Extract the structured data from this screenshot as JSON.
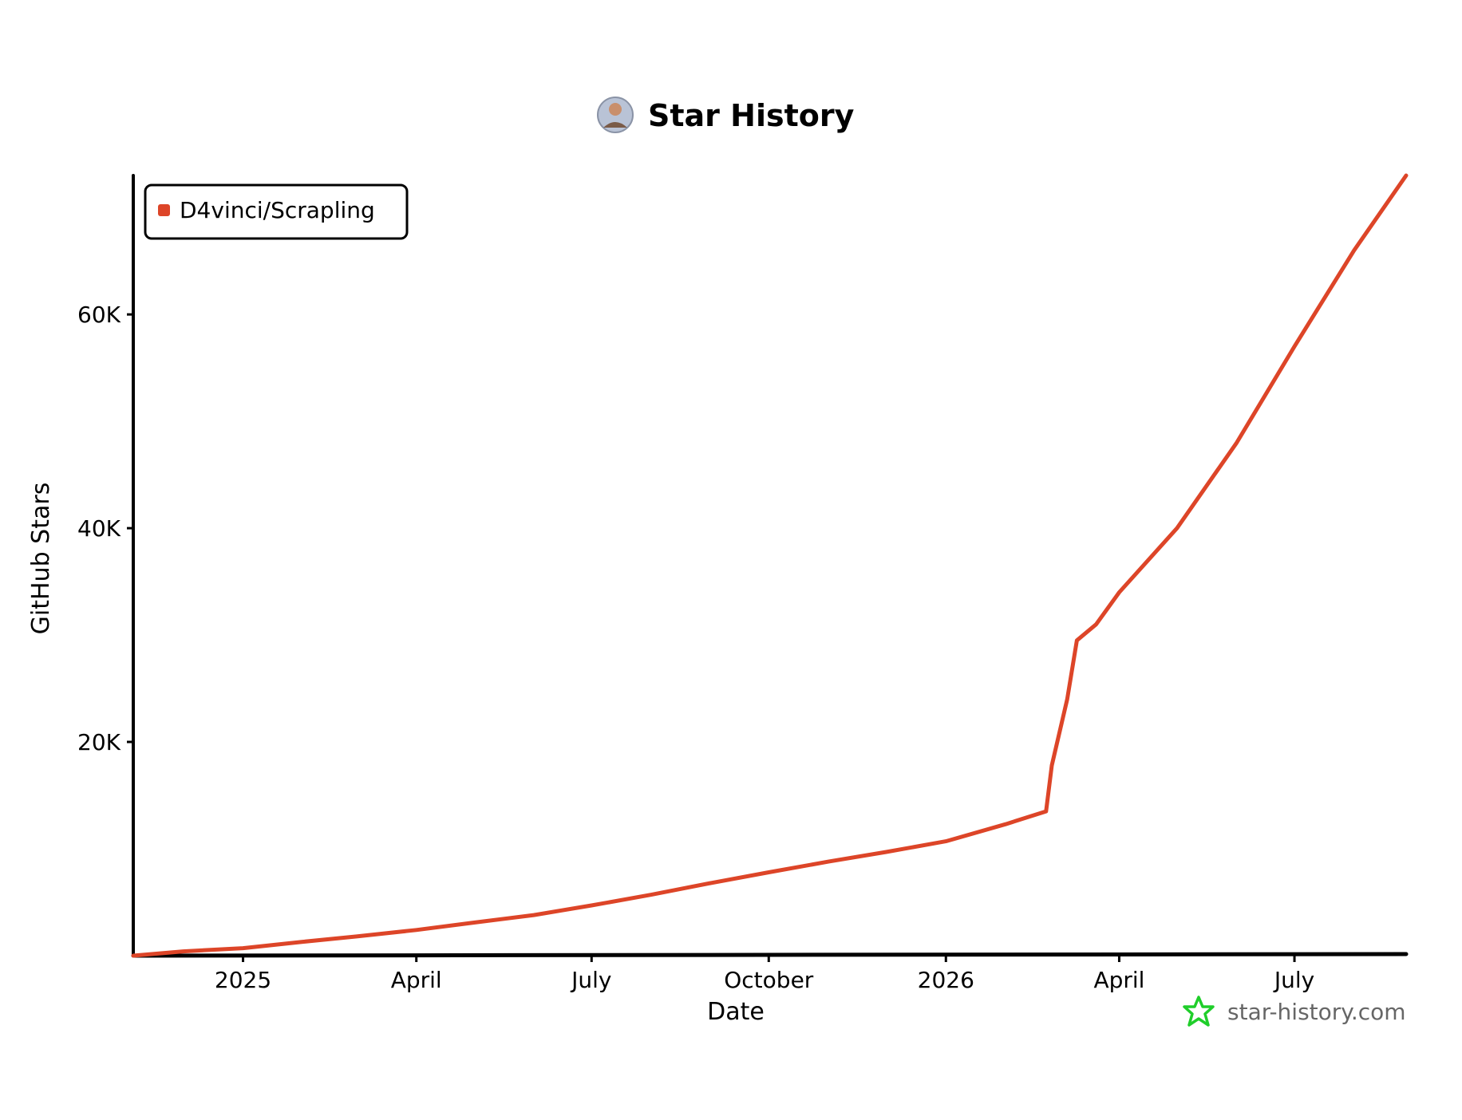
{
  "title": "Star History",
  "footer": {
    "text": "star-history.com"
  },
  "colors": {
    "series": "#dd4528",
    "axis": "#000000",
    "footer_logo": "#1fce2a",
    "footer_text": "#666666"
  },
  "icons": {
    "title_avatar": "avatar-icon",
    "footer_logo": "star-logo-icon"
  },
  "chart_data": {
    "type": "line",
    "title": "Star History",
    "xlabel": "Date",
    "ylabel": "GitHub Stars",
    "xlim": [
      "2024-11-05",
      "2026-08-28"
    ],
    "ylim": [
      0,
      73000
    ],
    "x_ticks": [
      {
        "date": "2025-01-01",
        "label": "2025"
      },
      {
        "date": "2025-04-01",
        "label": "April"
      },
      {
        "date": "2025-07-01",
        "label": "July"
      },
      {
        "date": "2025-10-01",
        "label": "October"
      },
      {
        "date": "2026-01-01",
        "label": "2026"
      },
      {
        "date": "2026-04-01",
        "label": "April"
      },
      {
        "date": "2026-07-01",
        "label": "July"
      }
    ],
    "y_ticks": [
      {
        "value": 20000,
        "label": "20K"
      },
      {
        "value": 40000,
        "label": "40K"
      },
      {
        "value": 60000,
        "label": "60K"
      }
    ],
    "grid": false,
    "legend": "top-left",
    "series": [
      {
        "name": "D4vinci/Scrapling",
        "color": "#dd4528",
        "points": [
          {
            "x": "2024-11-05",
            "y": 0
          },
          {
            "x": "2024-12-01",
            "y": 400
          },
          {
            "x": "2025-01-01",
            "y": 700
          },
          {
            "x": "2025-02-01",
            "y": 1300
          },
          {
            "x": "2025-03-01",
            "y": 1800
          },
          {
            "x": "2025-04-01",
            "y": 2400
          },
          {
            "x": "2025-05-01",
            "y": 3100
          },
          {
            "x": "2025-06-01",
            "y": 3800
          },
          {
            "x": "2025-07-01",
            "y": 4700
          },
          {
            "x": "2025-08-01",
            "y": 5700
          },
          {
            "x": "2025-09-01",
            "y": 6800
          },
          {
            "x": "2025-10-01",
            "y": 7800
          },
          {
            "x": "2025-11-01",
            "y": 8800
          },
          {
            "x": "2025-12-01",
            "y": 9700
          },
          {
            "x": "2026-01-01",
            "y": 10700
          },
          {
            "x": "2026-02-01",
            "y": 12300
          },
          {
            "x": "2026-02-22",
            "y": 13500
          },
          {
            "x": "2026-02-25",
            "y": 17800
          },
          {
            "x": "2026-03-05",
            "y": 24000
          },
          {
            "x": "2026-03-10",
            "y": 29500
          },
          {
            "x": "2026-03-20",
            "y": 31000
          },
          {
            "x": "2026-04-01",
            "y": 34000
          },
          {
            "x": "2026-05-01",
            "y": 40000
          },
          {
            "x": "2026-06-01",
            "y": 48000
          },
          {
            "x": "2026-07-01",
            "y": 57000
          },
          {
            "x": "2026-08-01",
            "y": 66000
          },
          {
            "x": "2026-08-28",
            "y": 73000
          }
        ]
      }
    ]
  }
}
